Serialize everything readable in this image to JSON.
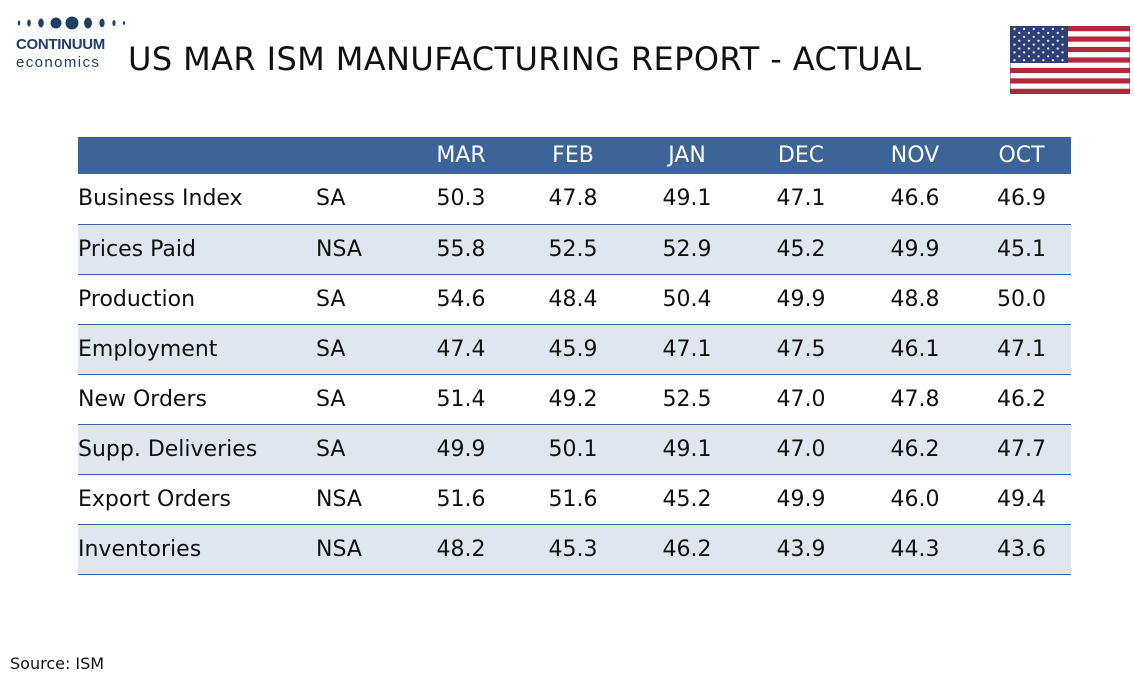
{
  "logo": {
    "line1": "CONTINUUM",
    "line2": "economics"
  },
  "title": "US MAR ISM MANUFACTURING REPORT - ACTUAL",
  "colors": {
    "header_bg": "#3d6497",
    "row_alt_bg": "#dfe6f0",
    "logo": "#1f3f67"
  },
  "table": {
    "columns": [
      "",
      "",
      "MAR",
      "FEB",
      "JAN",
      "DEC",
      "NOV",
      "OCT"
    ],
    "rows": [
      {
        "label": "Business Index",
        "adj": "SA",
        "values": [
          "50.3",
          "47.8",
          "49.1",
          "47.1",
          "46.6",
          "46.9"
        ]
      },
      {
        "label": "Prices Paid",
        "adj": "NSA",
        "values": [
          "55.8",
          "52.5",
          "52.9",
          "45.2",
          "49.9",
          "45.1"
        ]
      },
      {
        "label": "Production",
        "adj": "SA",
        "values": [
          "54.6",
          "48.4",
          "50.4",
          "49.9",
          "48.8",
          "50.0"
        ]
      },
      {
        "label": "Employment",
        "adj": "SA",
        "values": [
          "47.4",
          "45.9",
          "47.1",
          "47.5",
          "46.1",
          "47.1"
        ]
      },
      {
        "label": "New Orders",
        "adj": "SA",
        "values": [
          "51.4",
          "49.2",
          "52.5",
          "47.0",
          "47.8",
          "46.2"
        ]
      },
      {
        "label": "Supp. Deliveries",
        "adj": "SA",
        "values": [
          "49.9",
          "50.1",
          "49.1",
          "47.0",
          "46.2",
          "47.7"
        ]
      },
      {
        "label": "Export Orders",
        "adj": "NSA",
        "values": [
          "51.6",
          "51.6",
          "45.2",
          "49.9",
          "46.0",
          "49.4"
        ]
      },
      {
        "label": "Inventories",
        "adj": "NSA",
        "values": [
          "48.2",
          "45.3",
          "46.2",
          "43.9",
          "44.3",
          "43.6"
        ]
      }
    ]
  },
  "source": "Source: ISM"
}
